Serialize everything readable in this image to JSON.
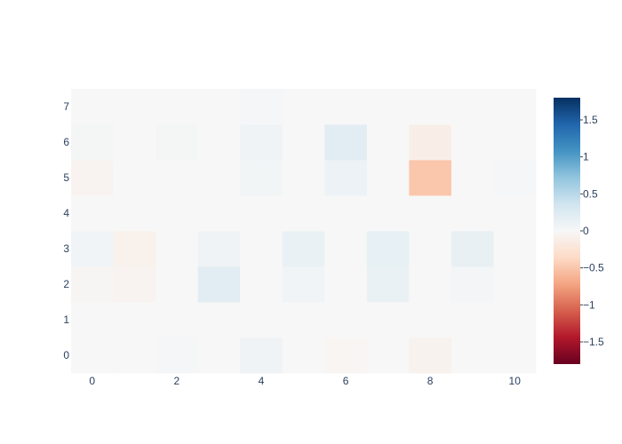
{
  "chart_data": {
    "type": "heatmap",
    "title": "",
    "xlabel": "",
    "ylabel": "",
    "x": [
      0,
      1,
      2,
      3,
      4,
      5,
      6,
      7,
      8,
      9,
      10
    ],
    "y": [
      0,
      1,
      2,
      3,
      4,
      5,
      6,
      7
    ],
    "x_tick_labels": [
      "0",
      "2",
      "4",
      "6",
      "8",
      "10"
    ],
    "y_tick_labels": [
      "0",
      "1",
      "2",
      "3",
      "4",
      "5",
      "6",
      "7"
    ],
    "z": [
      [
        0.0,
        0.0,
        0.02,
        0.0,
        0.08,
        0.0,
        -0.03,
        0.0,
        -0.06,
        0.0,
        0.0
      ],
      [
        0.0,
        0.0,
        0.0,
        0.0,
        0.0,
        0.0,
        0.0,
        0.0,
        0.0,
        0.0,
        0.0
      ],
      [
        -0.02,
        -0.05,
        0.0,
        0.2,
        0.0,
        0.06,
        0.0,
        0.12,
        0.0,
        0.04,
        0.0
      ],
      [
        0.06,
        -0.08,
        0.0,
        0.08,
        0.0,
        0.12,
        0.0,
        0.15,
        0.0,
        0.14,
        0.0
      ],
      [
        0.0,
        0.0,
        0.0,
        0.0,
        0.0,
        0.0,
        0.0,
        0.0,
        0.0,
        0.0,
        0.0
      ],
      [
        -0.05,
        0.0,
        0.0,
        0.0,
        0.05,
        0.0,
        0.1,
        0.0,
        -0.5,
        0.0,
        0.02
      ],
      [
        0.03,
        0.0,
        0.03,
        0.0,
        0.08,
        0.0,
        0.2,
        0.0,
        -0.12,
        0.0,
        0.0
      ],
      [
        0.0,
        0.0,
        0.0,
        0.0,
        0.02,
        0.0,
        0.0,
        0.0,
        0.0,
        0.0,
        0.0
      ]
    ],
    "zmin": -1.8,
    "zmax": 1.8,
    "colorscale": "RdBu",
    "colorbar_ticks": [
      1.5,
      1,
      0.5,
      0,
      -0.5,
      -1,
      -1.5
    ],
    "colorbar_tick_labels": [
      "1.5",
      "1",
      "0.5",
      "0",
      "−0.5",
      "−1",
      "−1.5"
    ],
    "grid": false,
    "plot_background": "#f5f6f7"
  }
}
